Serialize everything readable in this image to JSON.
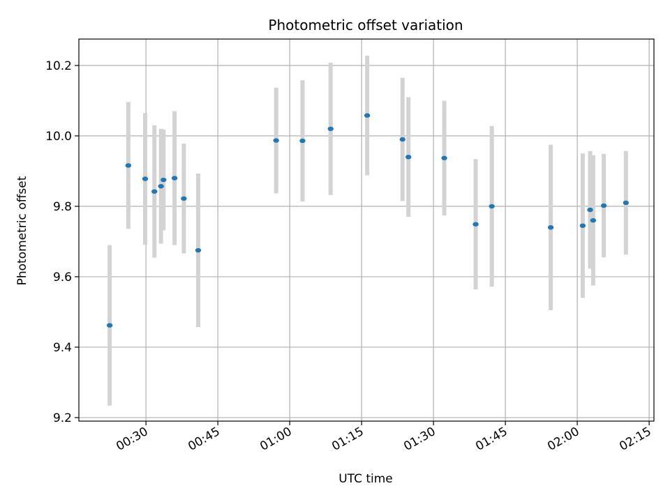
{
  "chart_data": {
    "type": "scatter",
    "title": "Photometric offset variation",
    "xlabel": "UTC time",
    "ylabel": "Photometric offset",
    "xlim": [
      "00:16",
      "02:16"
    ],
    "ylim": [
      9.19,
      10.275
    ],
    "x_ticks": [
      "00:30",
      "00:45",
      "01:00",
      "01:15",
      "01:30",
      "01:45",
      "02:00",
      "02:15"
    ],
    "y_ticks": [
      "9.2",
      "9.4",
      "9.6",
      "9.8",
      "10.0",
      "10.2"
    ],
    "grid": true,
    "colors": {
      "points": "#1f77b4",
      "errorbars": "#d3d3d3",
      "grid": "#b0b0b0"
    },
    "points": [
      {
        "x": "00:22:26",
        "y": 9.462,
        "err": 0.228
      },
      {
        "x": "00:26:19",
        "y": 9.916,
        "err": 0.18
      },
      {
        "x": "00:29:50",
        "y": 9.878,
        "err": 0.187
      },
      {
        "x": "00:31:46",
        "y": 9.842,
        "err": 0.188
      },
      {
        "x": "00:33:08",
        "y": 9.857,
        "err": 0.163
      },
      {
        "x": "00:33:40",
        "y": 9.875,
        "err": 0.143
      },
      {
        "x": "00:35:58",
        "y": 9.88,
        "err": 0.19
      },
      {
        "x": "00:37:54",
        "y": 9.822,
        "err": 0.156
      },
      {
        "x": "00:40:54",
        "y": 9.675,
        "err": 0.218
      },
      {
        "x": "00:57:10",
        "y": 9.987,
        "err": 0.15
      },
      {
        "x": "01:02:40",
        "y": 9.986,
        "err": 0.172
      },
      {
        "x": "01:08:32",
        "y": 10.02,
        "err": 0.188
      },
      {
        "x": "01:16:10",
        "y": 10.058,
        "err": 0.17
      },
      {
        "x": "01:23:32",
        "y": 9.99,
        "err": 0.175
      },
      {
        "x": "01:24:46",
        "y": 9.94,
        "err": 0.17
      },
      {
        "x": "01:32:15",
        "y": 9.937,
        "err": 0.163
      },
      {
        "x": "01:38:48",
        "y": 9.749,
        "err": 0.185
      },
      {
        "x": "01:42:10",
        "y": 9.8,
        "err": 0.228
      },
      {
        "x": "01:54:28",
        "y": 9.74,
        "err": 0.235
      },
      {
        "x": "02:01:08",
        "y": 9.745,
        "err": 0.205
      },
      {
        "x": "02:02:41",
        "y": 9.79,
        "err": 0.167
      },
      {
        "x": "02:03:19",
        "y": 9.76,
        "err": 0.185
      },
      {
        "x": "02:05:32",
        "y": 9.802,
        "err": 0.147
      },
      {
        "x": "02:10:09",
        "y": 9.81,
        "err": 0.147
      }
    ]
  }
}
